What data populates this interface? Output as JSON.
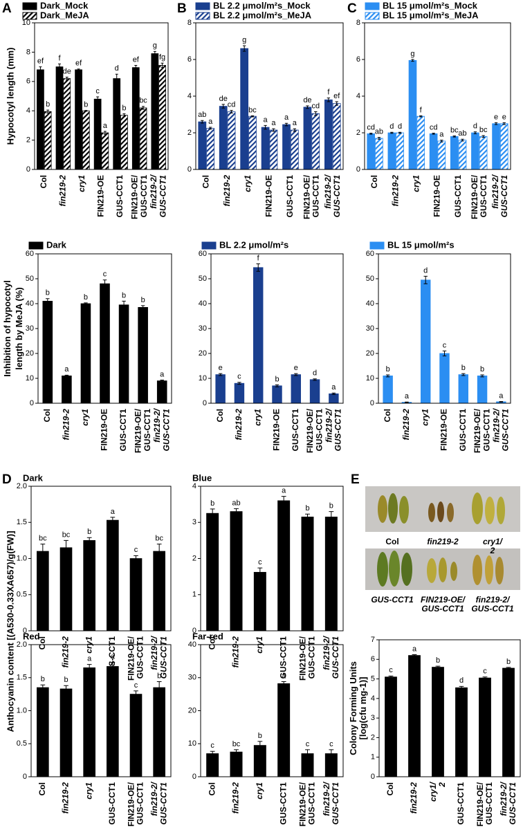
{
  "chart_data": [
    {
      "type": "bar",
      "panel": "A",
      "ylabel": "Hypocotyl length (mm)",
      "categories": [
        "Col",
        "fin219-2",
        "cry1",
        "FIN219-OE",
        "GUS-CCT1",
        "FIN219-OE/GUS-CCT1",
        "fin219-2/GUS-CCT1"
      ],
      "ylim": [
        0,
        10
      ],
      "yticks": [
        0,
        2,
        4,
        6,
        8,
        10
      ],
      "series": [
        {
          "name": "Dark_Mock",
          "color": "#000000",
          "hatch": false,
          "values": [
            6.8,
            7.0,
            6.8,
            4.8,
            6.2,
            6.95,
            7.9
          ],
          "errors": [
            0.2,
            0.2,
            0.05,
            0.15,
            0.3,
            0.15,
            0.15
          ],
          "letters": [
            "ef",
            "f",
            "ef",
            "c",
            "d",
            "ef",
            "g"
          ]
        },
        {
          "name": "Dark_MeJA",
          "color": "#000000",
          "hatch": true,
          "values": [
            3.95,
            6.2,
            4.0,
            2.5,
            3.7,
            4.2,
            7.1
          ],
          "errors": [
            0.1,
            0.1,
            0.03,
            0.1,
            0.1,
            0.1,
            0.15
          ],
          "letters": [
            "b",
            "de",
            "b",
            "a",
            "b",
            "bc",
            "fg"
          ]
        }
      ]
    },
    {
      "type": "bar",
      "panel": "B",
      "categories": [
        "Col",
        "fin219-2",
        "cry1",
        "FIN219-OE",
        "GUS-CCT1",
        "FIN219-OE/GUS-CCT1",
        "fin219-2/GUS-CCT1"
      ],
      "ylim": [
        0,
        8
      ],
      "yticks": [
        0,
        2,
        4,
        6,
        8
      ],
      "series": [
        {
          "name": "BL 2.2 μmol/m²s_Mock",
          "color": "#1a3f8f",
          "hatch": false,
          "values": [
            2.6,
            3.45,
            6.6,
            2.3,
            2.45,
            3.4,
            3.8
          ],
          "errors": [
            0.07,
            0.1,
            0.15,
            0.1,
            0.07,
            0.07,
            0.1
          ],
          "letters": [
            "ab",
            "de",
            "g",
            "a",
            "a",
            "de",
            "f"
          ]
        },
        {
          "name": "BL 2.2 μmol/m²s_MeJA",
          "color": "#1a3f8f",
          "hatch": true,
          "values": [
            2.25,
            3.15,
            2.9,
            2.15,
            2.15,
            3.05,
            3.6
          ],
          "errors": [
            0.05,
            0.07,
            0.03,
            0.07,
            0.07,
            0.1,
            0.1
          ],
          "letters": [
            "a",
            "cd",
            "bc",
            "a",
            "a",
            "cd",
            "ef"
          ]
        }
      ]
    },
    {
      "type": "bar",
      "panel": "C",
      "categories": [
        "Col",
        "fin219-2",
        "cry1",
        "FIN219-OE",
        "GUS-CCT1",
        "FIN219-OE/GUS-CCT1",
        "fin219-2/GUS-CCT1"
      ],
      "ylim": [
        0,
        8
      ],
      "yticks": [
        0,
        2,
        4,
        6,
        8
      ],
      "series": [
        {
          "name": "BL 15 μmol/m²s_Mock",
          "color": "#2b8ef2",
          "hatch": false,
          "values": [
            1.95,
            2.0,
            5.95,
            1.95,
            1.8,
            2.0,
            2.5
          ],
          "errors": [
            0.03,
            0.03,
            0.05,
            0.03,
            0.03,
            0.05,
            0.05
          ],
          "letters": [
            "cd",
            "d",
            "g",
            "cd",
            "bc",
            "d",
            "e"
          ]
        },
        {
          "name": "BL 15 μmol/m²s_MeJA",
          "color": "#2b8ef2",
          "hatch": true,
          "values": [
            1.7,
            2.0,
            2.9,
            1.55,
            1.6,
            1.8,
            2.5
          ],
          "errors": [
            0.05,
            0.03,
            0.03,
            0.05,
            0.05,
            0.05,
            0.05
          ],
          "letters": [
            "ab",
            "d",
            "f",
            "a",
            "ab",
            "bc",
            "e"
          ]
        }
      ]
    },
    {
      "type": "bar",
      "ylabel": "Inhibition of hypocotyl length by MeJA (%)",
      "categories": [
        "Col",
        "fin219-2",
        "cry1",
        "FIN219-OE",
        "GUS-CCT1",
        "FIN219-OE/GUS-CCT1",
        "fin219-2/GUS-CCT1"
      ],
      "ylim": [
        0,
        60
      ],
      "yticks": [
        0,
        10,
        20,
        30,
        40,
        50,
        60
      ],
      "series": [
        {
          "name": "Dark",
          "color": "#000000",
          "hatch": false,
          "values": [
            41,
            11,
            40,
            48,
            39.5,
            38.5,
            9
          ],
          "errors": [
            1,
            0.3,
            0.3,
            1.5,
            1.5,
            0.7,
            0.3
          ],
          "letters": [
            "b",
            "a",
            "b",
            "c",
            "b",
            "b",
            "a"
          ]
        }
      ]
    },
    {
      "type": "bar",
      "categories": [
        "Col",
        "fin219-2",
        "cry1",
        "FIN219-OE",
        "GUS-CCT1",
        "FIN219-OE/GUS-CCT1",
        "fin219-2/GUS-CCT1"
      ],
      "ylim": [
        0,
        60
      ],
      "yticks": [
        0,
        10,
        20,
        30,
        40,
        50,
        60
      ],
      "series": [
        {
          "name": "BL 2.2 μmol/m²s",
          "color": "#1a3f8f",
          "hatch": false,
          "values": [
            11.5,
            8,
            54.5,
            7,
            11.5,
            9.5,
            3.8
          ],
          "errors": [
            0.4,
            0.4,
            1.5,
            0.4,
            0.4,
            0.3,
            0.3
          ],
          "letters": [
            "e",
            "c",
            "f",
            "b",
            "e",
            "d",
            "a"
          ]
        }
      ]
    },
    {
      "type": "bar",
      "categories": [
        "Col",
        "fin219-2",
        "cry1",
        "FIN219-OE",
        "GUS-CCT1",
        "FIN219-OE/GUS-CCT1",
        "fin219-2/GUS-CCT1"
      ],
      "ylim": [
        0,
        60
      ],
      "yticks": [
        0,
        10,
        20,
        30,
        40,
        50,
        60
      ],
      "series": [
        {
          "name": "BL 15 μmol/m²s",
          "color": "#2b8ef2",
          "hatch": false,
          "values": [
            11,
            0.4,
            49.5,
            20,
            11.5,
            11,
            0.6
          ],
          "errors": [
            0.4,
            0.1,
            1.5,
            1,
            0.4,
            0.4,
            0.1
          ],
          "letters": [
            "b",
            "a",
            "d",
            "c",
            "b",
            "b",
            "a"
          ]
        }
      ]
    },
    {
      "type": "bar",
      "panel": "D",
      "title": "Dark",
      "ylabel": "Anthocyanin content [(A530-0.33XA657)/g(FW)]",
      "categories": [
        "Col",
        "fin219-2",
        "cry1",
        "GUS-CCT1",
        "FIN219-OE/GUS-CCT1",
        "fin219-2/GUS-CCT1"
      ],
      "ylim": [
        0,
        2
      ],
      "yticks": [
        0,
        0.5,
        {
          "value": 1,
          "label": "1.0"
        },
        1.5,
        {
          "value": 2,
          "label": "2.0"
        }
      ],
      "color": "#000000",
      "values": [
        1.1,
        1.15,
        1.25,
        1.53,
        1.0,
        1.1
      ],
      "errors": [
        0.1,
        0.1,
        0.04,
        0.04,
        0.04,
        0.1
      ],
      "letters": [
        "bc",
        "bc",
        "b",
        "a",
        "c",
        "bc"
      ]
    },
    {
      "type": "bar",
      "title": "Blue",
      "categories": [
        "Col",
        "fin219-2",
        "cry1",
        "GUS-CCT1",
        "FIN219-OE/GUS-CCT1",
        "fin219-2/GUS-CCT1"
      ],
      "ylim": [
        0,
        4
      ],
      "yticks": [
        0,
        1,
        2,
        3,
        4
      ],
      "color": "#000000",
      "values": [
        3.25,
        3.3,
        1.62,
        3.6,
        3.15,
        3.15
      ],
      "errors": [
        0.12,
        0.08,
        0.12,
        0.12,
        0.08,
        0.15
      ],
      "letters": [
        "b",
        "ab",
        "c",
        "a",
        "b",
        "b"
      ]
    },
    {
      "type": "bar",
      "title": "Red",
      "categories": [
        "Col",
        "fin219-2",
        "cry1",
        "GUS-CCT1",
        "FIN219-OE/GUS-CCT1",
        "fin219-2/GUS-CCT1"
      ],
      "ylim": [
        0,
        2
      ],
      "yticks": [
        0,
        0.5,
        {
          "value": 1,
          "label": "1.0"
        },
        1.5,
        {
          "value": 2,
          "label": "2.0"
        }
      ],
      "color": "#000000",
      "values": [
        1.35,
        1.33,
        1.65,
        1.67,
        1.25,
        1.35
      ],
      "errors": [
        0.04,
        0.05,
        0.05,
        0.06,
        0.05,
        0.09
      ],
      "letters": [
        "b",
        "b",
        "a",
        "a",
        "c",
        "b"
      ]
    },
    {
      "type": "bar",
      "title": "Far-red",
      "categories": [
        "Col",
        "fin219-2",
        "cry1",
        "GUS-CCT1",
        "FIN219-OE/GUS-CCT1",
        "fin219-2/GUS-CCT1"
      ],
      "ylim": [
        0,
        40
      ],
      "yticks": [
        0,
        10,
        20,
        30,
        40
      ],
      "color": "#000000",
      "values": [
        7,
        7.5,
        9.5,
        28.2,
        7,
        7
      ],
      "errors": [
        0.7,
        0.7,
        1.2,
        0.6,
        1.2,
        1.2
      ],
      "letters": [
        "c",
        "bc",
        "b",
        "a",
        "c",
        "c"
      ]
    },
    {
      "type": "bar",
      "panel": "E",
      "ylabel": "Colony Forming Units [log(cfu mg-1)]",
      "categories": [
        "Col",
        "fin219-2",
        "cry1/2",
        "GUS-CCT1",
        "FIN219-OE/GUS-CCT1",
        "fin219-2/GUS-CCT1"
      ],
      "ylim": [
        0,
        7
      ],
      "yticks": [
        0,
        1,
        2,
        3,
        4,
        5,
        6,
        7
      ],
      "color": "#000000",
      "values": [
        5.1,
        6.2,
        5.6,
        4.55,
        5.05,
        5.55
      ],
      "errors": [
        0.05,
        0.04,
        0.05,
        0.07,
        0.05,
        0.04
      ],
      "letters": [
        "c",
        "a",
        "b",
        "d",
        "c",
        "b"
      ]
    }
  ]
}
